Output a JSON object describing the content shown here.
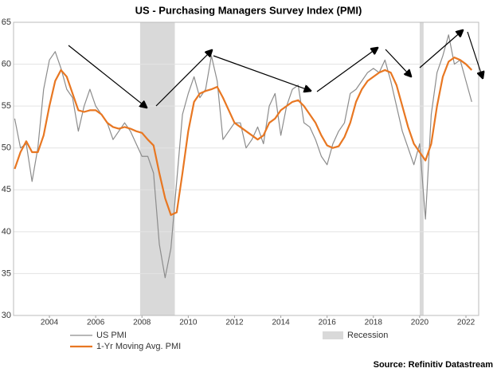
{
  "chart_data": {
    "type": "line",
    "title": "US - Purchasing Managers Survey Index (PMI)",
    "source": "Source: Refinitiv Datastream",
    "x": [
      2002.5,
      2002.75,
      2003,
      2003.25,
      2003.5,
      2003.75,
      2004,
      2004.25,
      2004.5,
      2004.75,
      2005,
      2005.25,
      2005.5,
      2005.75,
      2006,
      2006.25,
      2006.5,
      2006.75,
      2007,
      2007.25,
      2007.5,
      2007.75,
      2008,
      2008.25,
      2008.5,
      2008.75,
      2009,
      2009.25,
      2009.5,
      2009.75,
      2010,
      2010.25,
      2010.5,
      2010.75,
      2011,
      2011.25,
      2011.5,
      2011.75,
      2012,
      2012.25,
      2012.5,
      2012.75,
      2013,
      2013.25,
      2013.5,
      2013.75,
      2014,
      2014.25,
      2014.5,
      2014.75,
      2015,
      2015.25,
      2015.5,
      2015.75,
      2016,
      2016.25,
      2016.5,
      2016.75,
      2017,
      2017.25,
      2017.5,
      2017.75,
      2018,
      2018.25,
      2018.5,
      2018.75,
      2019,
      2019.25,
      2019.5,
      2019.75,
      2020,
      2020.25,
      2020.5,
      2020.75,
      2021,
      2021.25,
      2021.5,
      2021.75,
      2022,
      2022.25
    ],
    "series": [
      {
        "name": "US PMI",
        "color": "#8c8c8c",
        "width": 1.2,
        "values": [
          53.5,
          50,
          50.5,
          46,
          50,
          57,
          60.5,
          61.5,
          59.5,
          57,
          56,
          52,
          55,
          57,
          55,
          54,
          53,
          51,
          52,
          53,
          52,
          50.5,
          49,
          49,
          47,
          38.5,
          34.5,
          38,
          46,
          54,
          56.5,
          58.5,
          56,
          57,
          61,
          58,
          51,
          52,
          53,
          53,
          50,
          51,
          52.5,
          50.5,
          55,
          56.5,
          51.5,
          55,
          57,
          57.5,
          53,
          52.5,
          51,
          49,
          48,
          50.5,
          52,
          53,
          56.5,
          57,
          58,
          59,
          59.5,
          59,
          60.5,
          58,
          55,
          52,
          50,
          48,
          50.5,
          41.5,
          54,
          59,
          61,
          63.5,
          60,
          60.5,
          58,
          55.5
        ]
      },
      {
        "name": "1-Yr Moving Avg. PMI",
        "color": "#e87722",
        "width": 2.2,
        "values": [
          47.5,
          49.5,
          50.8,
          49.5,
          49.5,
          51.5,
          55,
          58,
          59.3,
          58.5,
          56.5,
          54.5,
          54.3,
          54.5,
          54.5,
          54,
          53,
          52.5,
          52.3,
          52.5,
          52.3,
          52,
          51.8,
          51,
          50.3,
          47,
          44,
          42,
          42.3,
          47,
          52,
          55.5,
          56.5,
          56.8,
          57,
          57.3,
          56,
          54.5,
          53,
          52.5,
          52,
          51.5,
          51,
          51.5,
          53,
          53.5,
          54.5,
          55,
          55.5,
          55.7,
          55,
          54,
          53,
          51.5,
          50.3,
          50,
          50.2,
          51.3,
          53,
          55.5,
          57,
          58,
          58.5,
          59,
          59.3,
          59,
          57.5,
          55,
          52.5,
          50.5,
          49.5,
          48.5,
          50.5,
          55,
          58.5,
          60.3,
          60.8,
          60.5,
          60,
          59.3
        ]
      }
    ],
    "shading": {
      "name": "Recession",
      "color": "#d9d9d9",
      "ranges": [
        [
          2007.92,
          2009.42
        ],
        [
          2020.0,
          2020.17
        ]
      ]
    },
    "xlim": [
      2002.45,
      2022.55
    ],
    "xticks": [
      2004,
      2006,
      2008,
      2010,
      2012,
      2014,
      2016,
      2018,
      2020,
      2022
    ],
    "ylim": [
      30,
      65
    ],
    "yticks": [
      30,
      35,
      40,
      45,
      50,
      55,
      60,
      65
    ],
    "grid": true
  }
}
